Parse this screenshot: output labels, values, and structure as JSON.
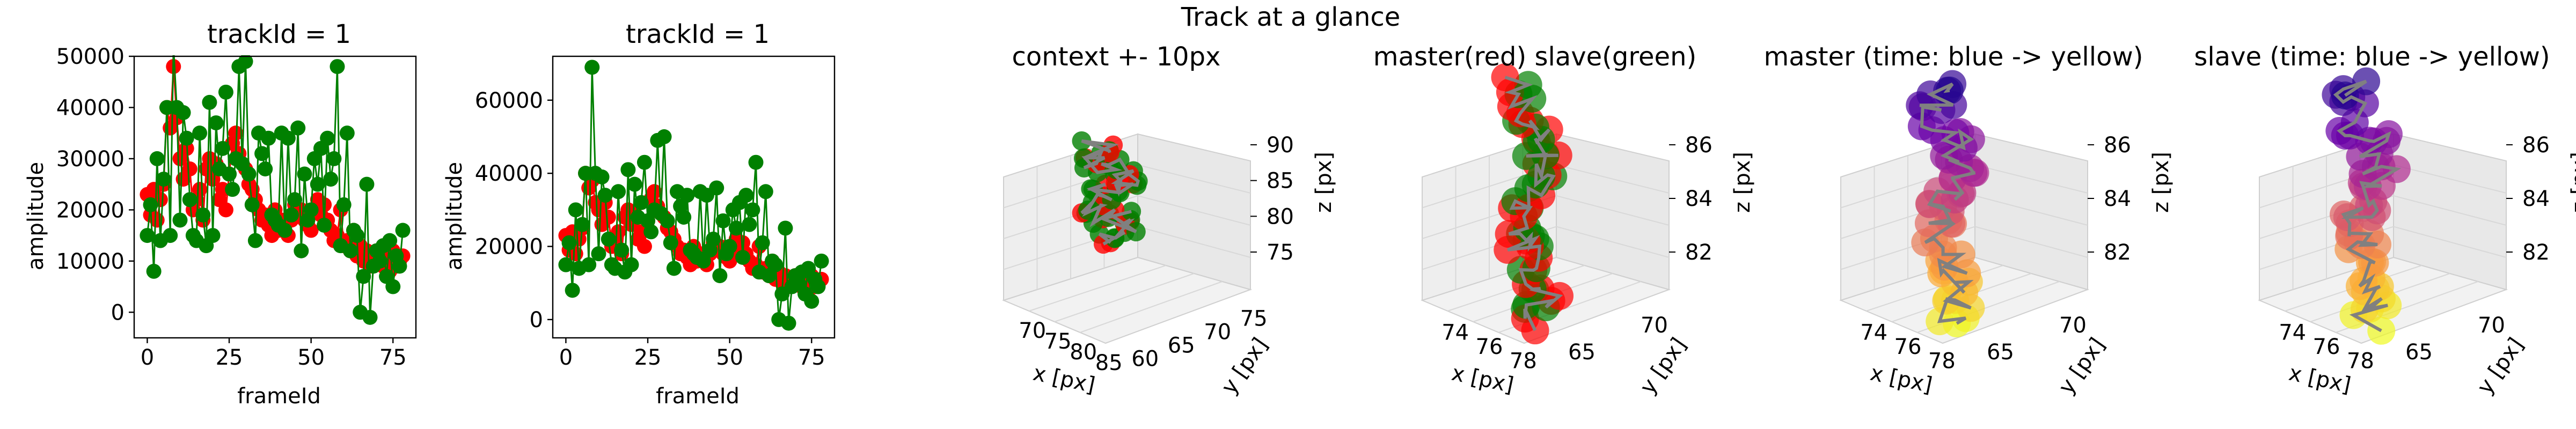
{
  "figure": {
    "suptitle": "Track at a glance"
  },
  "colors": {
    "master": "#ff0000",
    "slave": "#008000",
    "path": "#808080",
    "plasma": [
      "#0d0887",
      "#6a00a8",
      "#b12a90",
      "#e16462",
      "#fca636",
      "#f0f921"
    ]
  },
  "chart_data": [
    {
      "type": "line",
      "title": "trackId = 1",
      "xlabel": "frameId",
      "ylabel": "amplitude",
      "xlim": [
        -4,
        82
      ],
      "ylim": [
        -5000,
        50000
      ],
      "xticks": [
        "0",
        "25",
        "50",
        "75"
      ],
      "yticks": [
        "0",
        "10000",
        "20000",
        "30000",
        "40000",
        "50000"
      ],
      "series": [
        {
          "color": "#ff0000",
          "x": [
            0,
            1,
            2,
            3,
            4,
            5,
            6,
            7,
            8,
            9,
            10,
            11,
            12,
            13,
            14,
            15,
            16,
            17,
            18,
            19,
            20,
            21,
            22,
            23,
            24,
            25,
            26,
            27,
            28,
            29,
            30,
            31,
            32,
            33,
            34,
            35,
            36,
            37,
            38,
            39,
            40,
            41,
            42,
            43,
            44,
            45,
            46,
            47,
            48,
            49,
            50,
            51,
            52,
            53,
            54,
            55,
            56,
            57,
            58,
            59,
            60,
            61,
            62,
            63,
            64,
            65,
            66,
            67,
            68,
            69,
            70,
            71,
            72,
            73,
            74,
            75,
            76,
            77,
            78
          ],
          "values": [
            23000,
            19000,
            24000,
            18000,
            22000,
            25000,
            40000,
            36000,
            48000,
            38000,
            30000,
            26000,
            32000,
            28000,
            20000,
            22000,
            24000,
            18000,
            28000,
            30000,
            26000,
            29000,
            22000,
            24000,
            20000,
            27000,
            33000,
            35000,
            31000,
            29000,
            28000,
            25000,
            24000,
            22000,
            20000,
            18000,
            19000,
            17000,
            15000,
            20000,
            16000,
            18000,
            17000,
            15000,
            18000,
            21000,
            19000,
            20000,
            18000,
            17000,
            16000,
            20000,
            22000,
            19000,
            21000,
            18000,
            16000,
            14000,
            15000,
            20000,
            13000,
            14000,
            12000,
            16000,
            11000,
            13000,
            10000,
            12000,
            9000,
            10000,
            12000,
            11000,
            9000,
            10000,
            8000,
            12000,
            9000,
            10000,
            11000
          ]
        },
        {
          "color": "#008000",
          "x": [
            0,
            1,
            2,
            3,
            4,
            5,
            6,
            7,
            8,
            9,
            10,
            11,
            12,
            13,
            14,
            15,
            16,
            17,
            18,
            19,
            20,
            21,
            22,
            23,
            24,
            25,
            26,
            27,
            28,
            29,
            30,
            31,
            32,
            33,
            34,
            35,
            36,
            37,
            38,
            39,
            40,
            41,
            42,
            43,
            44,
            45,
            46,
            47,
            48,
            49,
            50,
            51,
            52,
            53,
            54,
            55,
            56,
            57,
            58,
            59,
            60,
            61,
            62,
            63,
            64,
            65,
            66,
            67,
            68,
            69,
            70,
            71,
            72,
            73,
            74,
            75,
            76,
            77,
            78
          ],
          "values": [
            15000,
            21000,
            8000,
            30000,
            14000,
            26000,
            40000,
            15000,
            52000,
            40000,
            18000,
            39000,
            34000,
            22000,
            15000,
            14000,
            35000,
            19000,
            13000,
            41000,
            15000,
            37000,
            28000,
            32000,
            43000,
            27000,
            24000,
            30000,
            48000,
            29000,
            49000,
            27000,
            21000,
            14000,
            35000,
            31000,
            28000,
            34000,
            19000,
            18000,
            17000,
            35000,
            16000,
            34000,
            19000,
            22000,
            36000,
            12000,
            27000,
            18000,
            20000,
            30000,
            25000,
            32000,
            17000,
            34000,
            26000,
            30000,
            48000,
            13000,
            21000,
            35000,
            12000,
            16000,
            15000,
            0,
            7000,
            25000,
            -1000,
            9000,
            12000,
            10000,
            13000,
            7000,
            14000,
            5000,
            11000,
            9000,
            16000
          ]
        }
      ]
    },
    {
      "type": "line",
      "title": "trackId = 1",
      "xlabel": "frameId",
      "ylabel": "amplitude",
      "xlim": [
        -4,
        82
      ],
      "ylim": [
        -5000,
        72000
      ],
      "xticks": [
        "0",
        "25",
        "50",
        "75"
      ],
      "yticks": [
        "0",
        "20000",
        "40000",
        "60000"
      ],
      "series": [
        {
          "color": "#ff0000",
          "x": [
            0,
            1,
            2,
            3,
            4,
            5,
            6,
            7,
            8,
            9,
            10,
            11,
            12,
            13,
            14,
            15,
            16,
            17,
            18,
            19,
            20,
            21,
            22,
            23,
            24,
            25,
            26,
            27,
            28,
            29,
            30,
            31,
            32,
            33,
            34,
            35,
            36,
            37,
            38,
            39,
            40,
            41,
            42,
            43,
            44,
            45,
            46,
            47,
            48,
            49,
            50,
            51,
            52,
            53,
            54,
            55,
            56,
            57,
            58,
            59,
            60,
            61,
            62,
            63,
            64,
            65,
            66,
            67,
            68,
            69,
            70,
            71,
            72,
            73,
            74,
            75,
            76,
            77,
            78
          ],
          "values": [
            23000,
            19000,
            24000,
            18000,
            22000,
            25000,
            40000,
            36000,
            38000,
            32000,
            30000,
            26000,
            32000,
            28000,
            20000,
            22000,
            24000,
            18000,
            28000,
            30000,
            26000,
            29000,
            22000,
            24000,
            20000,
            27000,
            33000,
            35000,
            31000,
            29000,
            28000,
            25000,
            24000,
            22000,
            20000,
            18000,
            19000,
            17000,
            15000,
            20000,
            16000,
            18000,
            17000,
            15000,
            18000,
            21000,
            19000,
            20000,
            18000,
            17000,
            16000,
            20000,
            22000,
            19000,
            21000,
            18000,
            16000,
            14000,
            15000,
            20000,
            13000,
            14000,
            12000,
            16000,
            11000,
            13000,
            10000,
            12000,
            9000,
            10000,
            12000,
            11000,
            9000,
            10000,
            8000,
            12000,
            9000,
            10000,
            11000
          ]
        },
        {
          "color": "#008000",
          "x": [
            0,
            1,
            2,
            3,
            4,
            5,
            6,
            7,
            8,
            9,
            10,
            11,
            12,
            13,
            14,
            15,
            16,
            17,
            18,
            19,
            20,
            21,
            22,
            23,
            24,
            25,
            26,
            27,
            28,
            29,
            30,
            31,
            32,
            33,
            34,
            35,
            36,
            37,
            38,
            39,
            40,
            41,
            42,
            43,
            44,
            45,
            46,
            47,
            48,
            49,
            50,
            51,
            52,
            53,
            54,
            55,
            56,
            57,
            58,
            59,
            60,
            61,
            62,
            63,
            64,
            65,
            66,
            67,
            68,
            69,
            70,
            71,
            72,
            73,
            74,
            75,
            76,
            77,
            78
          ],
          "values": [
            15000,
            21000,
            8000,
            30000,
            14000,
            26000,
            40000,
            15000,
            69000,
            40000,
            18000,
            39000,
            34000,
            22000,
            15000,
            14000,
            35000,
            19000,
            13000,
            41000,
            15000,
            37000,
            28000,
            32000,
            43000,
            27000,
            24000,
            30000,
            49000,
            29000,
            50000,
            27000,
            21000,
            14000,
            35000,
            31000,
            28000,
            34000,
            19000,
            18000,
            17000,
            35000,
            16000,
            34000,
            19000,
            22000,
            36000,
            12000,
            27000,
            18000,
            20000,
            30000,
            25000,
            32000,
            17000,
            34000,
            26000,
            30000,
            43000,
            13000,
            21000,
            35000,
            12000,
            16000,
            15000,
            0,
            7000,
            25000,
            -1000,
            9000,
            12000,
            10000,
            13000,
            7000,
            14000,
            5000,
            11000,
            9000,
            16000
          ]
        }
      ]
    },
    {
      "type": "scatter3d",
      "title": "context +- 10px",
      "xlabel": "x [px]",
      "ylabel": "y [px]",
      "zlabel": "z [px]",
      "xticks": [
        "70",
        "75",
        "80",
        "85"
      ],
      "yticks": [
        "60",
        "65",
        "70",
        "75"
      ],
      "zticks": [
        "75",
        "80",
        "85",
        "90"
      ]
    },
    {
      "type": "scatter3d",
      "title": "master(red) slave(green)",
      "xlabel": "x [px]",
      "ylabel": "y [px]",
      "zlabel": "z [px]",
      "xticks": [
        "74",
        "76",
        "78"
      ],
      "yticks": [
        "65",
        "70"
      ],
      "zticks": [
        "82",
        "84",
        "86"
      ]
    },
    {
      "type": "scatter3d",
      "title": "master (time: blue -> yellow)",
      "xlabel": "x [px]",
      "ylabel": "y [px]",
      "zlabel": "z [px]",
      "xticks": [
        "74",
        "76",
        "78"
      ],
      "yticks": [
        "65",
        "70"
      ],
      "zticks": [
        "82",
        "84",
        "86"
      ]
    },
    {
      "type": "scatter3d",
      "title": "slave (time: blue -> yellow)",
      "xlabel": "x [px]",
      "ylabel": "y [px]",
      "zlabel": "z [px]",
      "xticks": [
        "74",
        "76",
        "78"
      ],
      "yticks": [
        "65",
        "70"
      ],
      "zticks": [
        "82",
        "84",
        "86"
      ]
    }
  ]
}
